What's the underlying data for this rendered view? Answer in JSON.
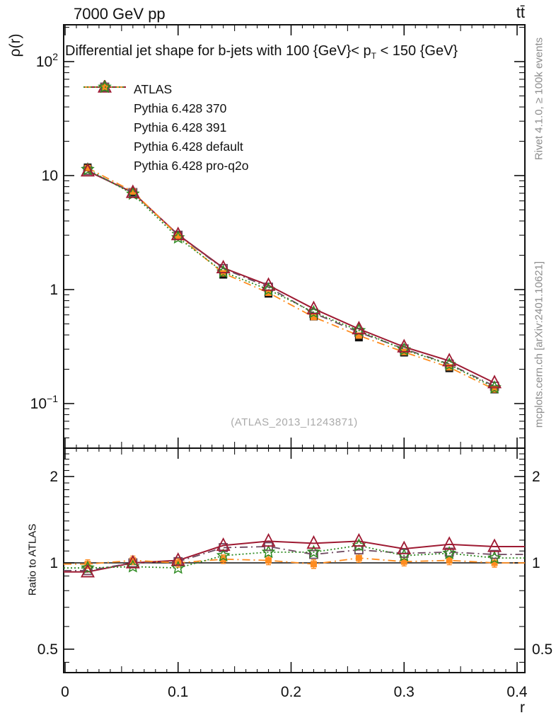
{
  "meta": {
    "beam": "7000 GeV pp",
    "process": "tt̄",
    "rivet_note": "Rivet 4.1.0, ≥ 100k events",
    "mcplots_note": "mcplots.cern.ch [arXiv:2401.10621]",
    "watermark": "(ATLAS_2013_I1243871)"
  },
  "title": {
    "pre": "Differential jet shape for b-jets with 100 {GeV}< p",
    "sub": "T",
    "post": " < 150 {GeV}"
  },
  "axes": {
    "y_main_label": "ρ(r)",
    "y_ratio_label": "Ratio to ATLAS",
    "x_label": "r",
    "x_ticks": [
      {
        "v": 0,
        "label": "0"
      },
      {
        "v": 0.1,
        "label": "0.1"
      },
      {
        "v": 0.2,
        "label": "0.2"
      },
      {
        "v": 0.3,
        "label": "0.3"
      },
      {
        "v": 0.4,
        "label": "0.4"
      }
    ],
    "y_main_ticks": [
      {
        "v": 100,
        "base": "10",
        "exp": "2"
      },
      {
        "v": 10,
        "base": "10",
        "exp": ""
      },
      {
        "v": 1,
        "base": "1",
        "exp": ""
      },
      {
        "v": 0.1,
        "base": "10",
        "exp": "−1"
      }
    ],
    "y_ratio_ticks": [
      {
        "v": 2,
        "label": "2"
      },
      {
        "v": 1,
        "label": "1"
      },
      {
        "v": 0.5,
        "label": "0.5"
      }
    ],
    "y_ratio_minor_ticks": [
      0.45,
      0.6,
      0.7,
      0.8,
      0.9,
      1.1,
      1.2,
      1.3,
      1.4,
      1.5,
      1.6,
      1.7,
      1.8,
      1.9,
      2.1,
      2.2,
      2.3,
      2.4,
      2.5
    ]
  },
  "legend": {
    "items": [
      {
        "label": "ATLAS"
      },
      {
        "label": "Pythia 6.428 370"
      },
      {
        "label": "Pythia 6.428 391"
      },
      {
        "label": "Pythia 6.428 default"
      },
      {
        "label": "Pythia 6.428 pro-q2o"
      }
    ]
  },
  "chart_data": {
    "type": "line",
    "title": "Differential jet shape for b-jets with 100 {GeV}< p_T < 150 {GeV}",
    "xlabel": "r",
    "ylabel": "ρ(r)",
    "ylabel_ratio": "Ratio to ATLAS",
    "x_scale": "linear",
    "y_scale": "log",
    "grid": false,
    "legend_position": "top-left",
    "x_range": [
      -0.00125,
      0.40694
    ],
    "y_range_main": [
      0.0406,
      210
    ],
    "y_range_ratio": [
      0.414,
      2.512
    ],
    "x": [
      0.02,
      0.06,
      0.1,
      0.14,
      0.18,
      0.22,
      0.26,
      0.3,
      0.34,
      0.38
    ],
    "series": [
      {
        "name": "ATLAS",
        "color": "#111111",
        "marker": "square-filled",
        "msize": 11,
        "line": "none",
        "values": [
          11.8,
          7.1,
          2.97,
          1.35,
          0.92,
          0.58,
          0.38,
          0.28,
          0.204,
          0.133
        ],
        "ratio": [
          1,
          1,
          1,
          1,
          1,
          1,
          1,
          1,
          1,
          1
        ],
        "yerr_frac": 0.05
      },
      {
        "name": "Pythia 6.428 370",
        "color": "#9e1a32",
        "marker": "triangle-open",
        "msize": 17,
        "line": "solid",
        "values": [
          10.97,
          7.1,
          3.03,
          1.55,
          1.09,
          0.679,
          0.452,
          0.314,
          0.237,
          0.152
        ],
        "ratio": [
          0.93,
          1.0,
          1.02,
          1.15,
          1.19,
          1.17,
          1.19,
          1.12,
          1.16,
          1.14
        ]
      },
      {
        "name": "Pythia 6.428 391",
        "color": "#6e4960",
        "marker": "square-open",
        "msize": 11,
        "line": "dashdot",
        "values": [
          11.09,
          7.1,
          3.0,
          1.53,
          1.05,
          0.621,
          0.422,
          0.302,
          0.222,
          0.142
        ],
        "ratio": [
          0.94,
          1.0,
          1.01,
          1.13,
          1.14,
          1.07,
          1.11,
          1.08,
          1.09,
          1.07
        ]
      },
      {
        "name": "Pythia 6.428 default",
        "color": "#ff8c1f",
        "marker": "square-filled",
        "msize": 9,
        "line": "dashdot",
        "values": [
          11.68,
          7.24,
          2.97,
          1.39,
          0.938,
          0.574,
          0.395,
          0.283,
          0.208,
          0.133
        ],
        "ratio": [
          0.99,
          1.02,
          1.0,
          1.03,
          1.02,
          0.99,
          1.04,
          1.01,
          1.02,
          1.0
        ],
        "ratio_err": 0.035
      },
      {
        "name": "Pythia 6.428 pro-q2o",
        "color": "#2e8b22",
        "marker": "star-open",
        "msize": 17,
        "line": "dotted",
        "values": [
          11.33,
          6.89,
          2.85,
          1.43,
          1.0,
          0.632,
          0.437,
          0.297,
          0.22,
          0.138
        ],
        "ratio": [
          0.96,
          0.97,
          0.96,
          1.06,
          1.09,
          1.09,
          1.15,
          1.06,
          1.08,
          1.04
        ]
      }
    ]
  }
}
